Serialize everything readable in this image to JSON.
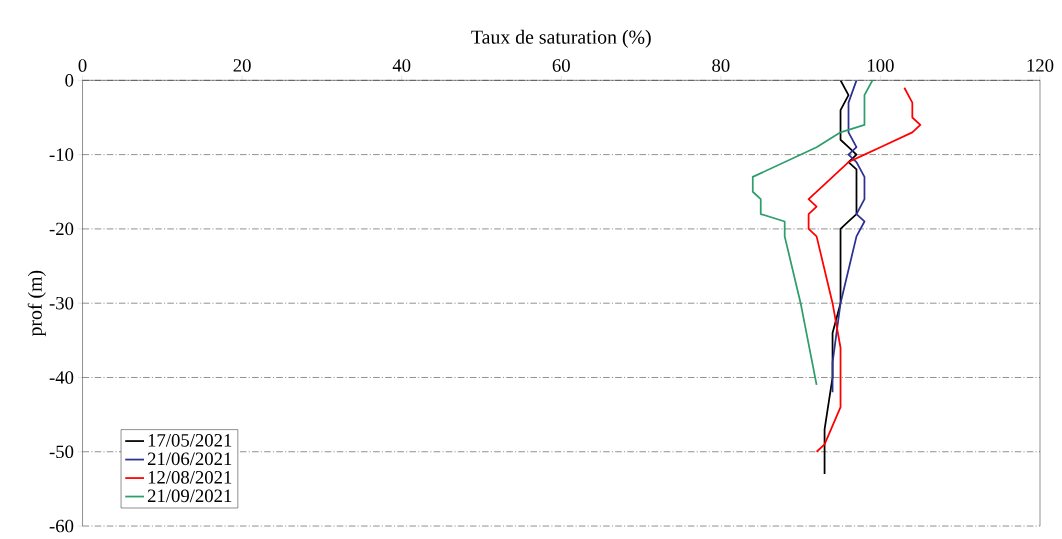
{
  "chart_data": {
    "type": "line",
    "xlabel": "Taux de saturation (%)",
    "ylabel": "prof (m)",
    "xlim": [
      0,
      120
    ],
    "xticks": [
      0,
      20,
      40,
      60,
      80,
      100,
      120
    ],
    "ylim": [
      -60,
      0
    ],
    "yticks": [
      -60,
      -50,
      -40,
      -30,
      -20,
      -10,
      0
    ],
    "grid": "y",
    "legend": "bottom left",
    "marker": "none",
    "line_style": "solid",
    "series": [
      {
        "name": "17/05/2021",
        "color": "#000000",
        "x": [
          95,
          96,
          95,
          95,
          96,
          97,
          96,
          97,
          97,
          96,
          95,
          95,
          94,
          94,
          93,
          93
        ],
        "values": [
          0,
          -2,
          -4,
          -8,
          -9,
          -10,
          -11,
          -12,
          -18,
          -19,
          -20,
          -30,
          -34,
          -40,
          -47,
          -53
        ]
      },
      {
        "name": "21/06/2021",
        "color": "#2e3192",
        "x": [
          97,
          96,
          96,
          97,
          96,
          97,
          98,
          98,
          97,
          98,
          97,
          95,
          94,
          94
        ],
        "values": [
          0,
          -3,
          -7,
          -9,
          -10,
          -11,
          -13,
          -16,
          -18,
          -19,
          -21,
          -30,
          -38,
          -42
        ]
      },
      {
        "name": "12/08/2021",
        "color": "#ff0000",
        "x": [
          103,
          104,
          104,
          105,
          104,
          100,
          98,
          96,
          93,
          91,
          92,
          91,
          91,
          92,
          94,
          95,
          95,
          93,
          92
        ],
        "values": [
          -1,
          -3,
          -5,
          -6,
          -7,
          -9,
          -10,
          -11,
          -14,
          -16,
          -17,
          -18,
          -20,
          -21,
          -30,
          -36,
          -44,
          -49,
          -50
        ]
      },
      {
        "name": "21/09/2021",
        "color": "#2e9e6b",
        "x": [
          99,
          98,
          98,
          95,
          92,
          84,
          84,
          85,
          85,
          88,
          88,
          90,
          92
        ],
        "values": [
          0,
          -2,
          -6,
          -7,
          -9,
          -13,
          -15,
          -16,
          -18,
          -19,
          -21,
          -30,
          -41
        ]
      }
    ]
  }
}
